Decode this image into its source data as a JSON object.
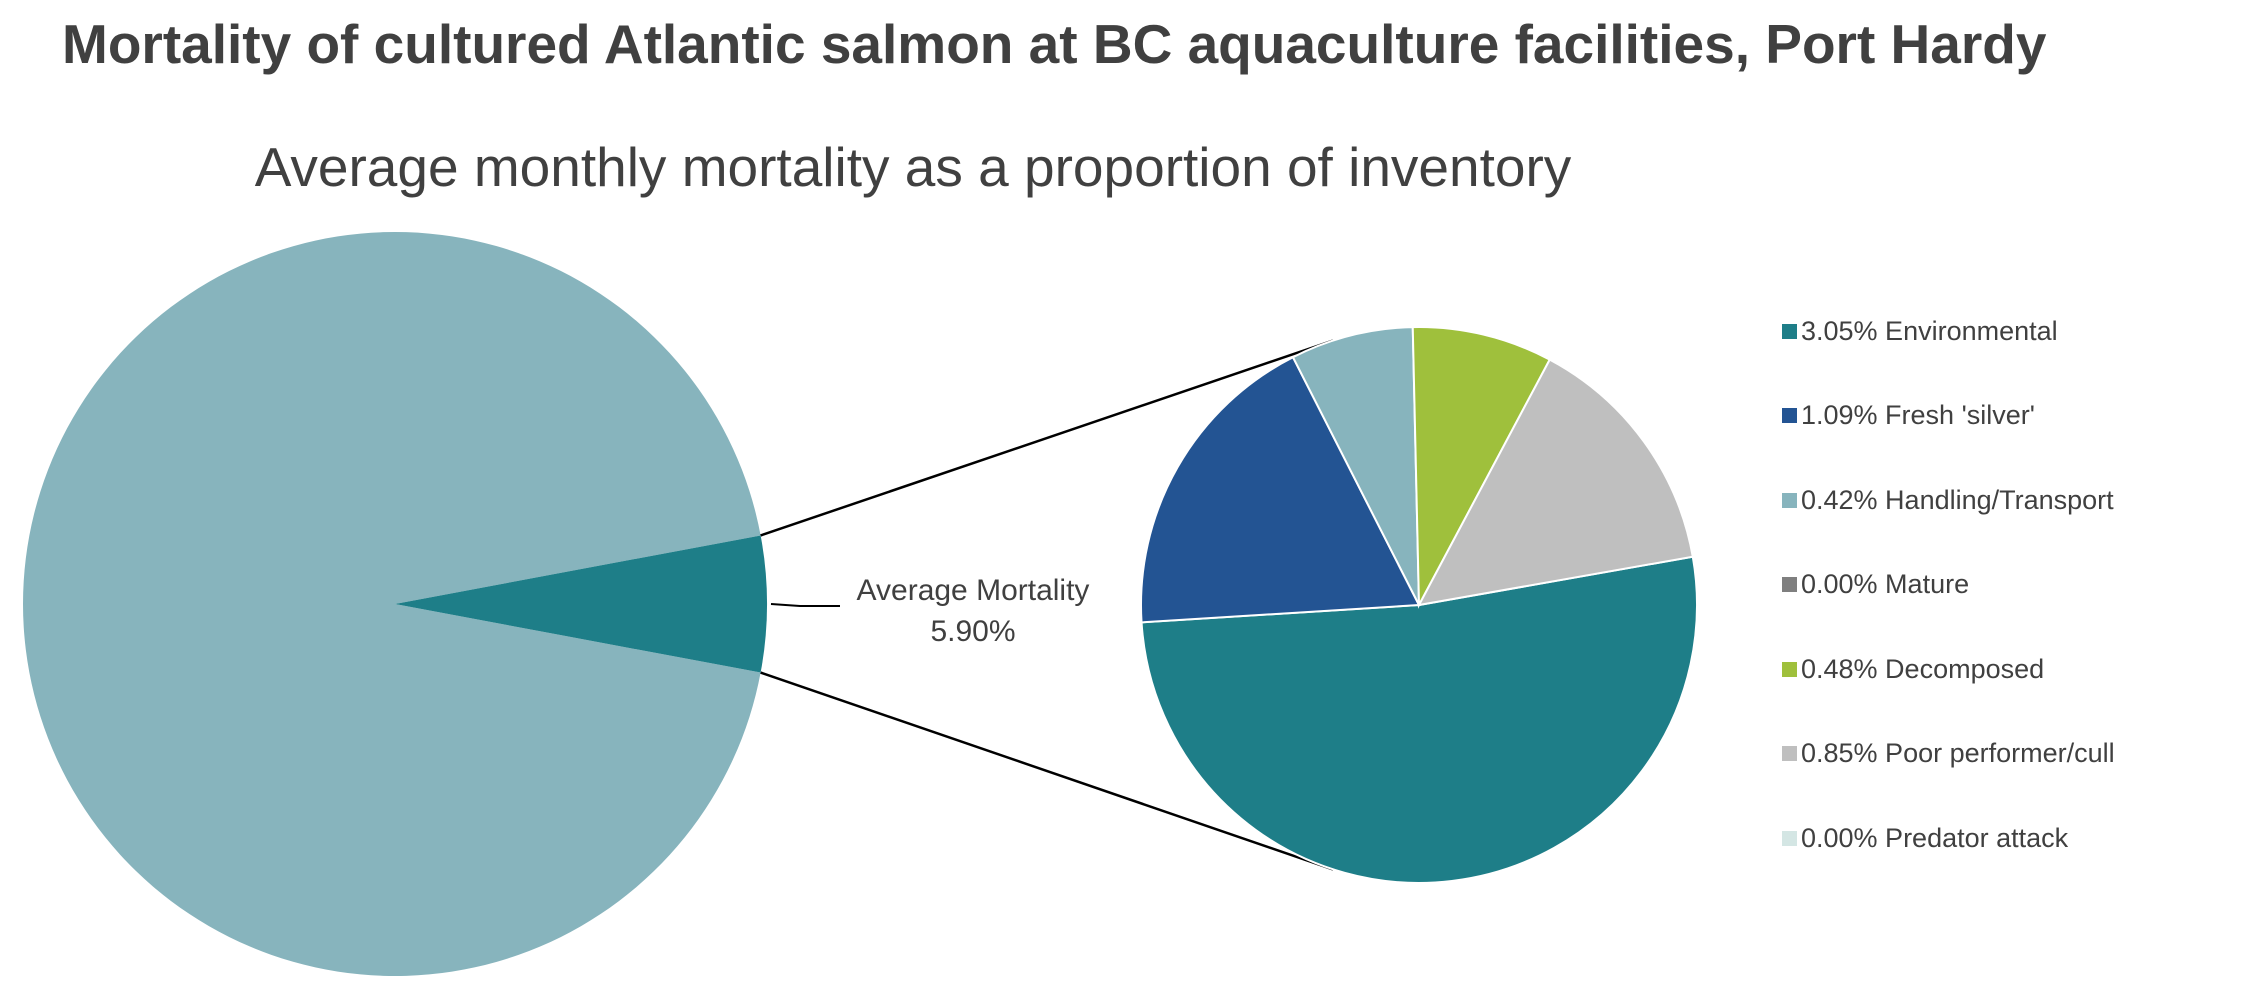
{
  "title": "Mortality of cultured Atlantic salmon at BC aquaculture facilities, Port Hardy",
  "chart_data": {
    "type": "pie",
    "subtitle": "Average monthly mortality as a proportion of inventory",
    "primary_pie": {
      "slices": [
        {
          "label": "",
          "value": 94.1,
          "color": "#87b4bd"
        },
        {
          "label": "Average Mortality",
          "value": 5.9,
          "value_label": "5.90%",
          "color": "#1e7e88"
        }
      ]
    },
    "secondary_pie": {
      "slices": [
        {
          "label": "Environmental",
          "value": 3.05,
          "value_label": "3.05%",
          "color": "#1e7e88"
        },
        {
          "label": "Fresh 'silver'",
          "value": 1.09,
          "value_label": "1.09%",
          "color": "#235493"
        },
        {
          "label": "Handling/Transport",
          "value": 0.42,
          "value_label": "0.42%",
          "color": "#87b4bd"
        },
        {
          "label": "Mature",
          "value": 0.0,
          "value_label": "0.00%",
          "color": "#7f7f7f"
        },
        {
          "label": "Decomposed",
          "value": 0.48,
          "value_label": "0.48%",
          "color": "#9fc03c"
        },
        {
          "label": "Poor performer/cull",
          "value": 0.85,
          "value_label": "0.85%",
          "color": "#bfbfbf"
        },
        {
          "label": "Predator attack",
          "value": 0.0,
          "value_label": "0.00%",
          "color": "#d4e6e4"
        }
      ]
    },
    "legend_position": "right"
  }
}
